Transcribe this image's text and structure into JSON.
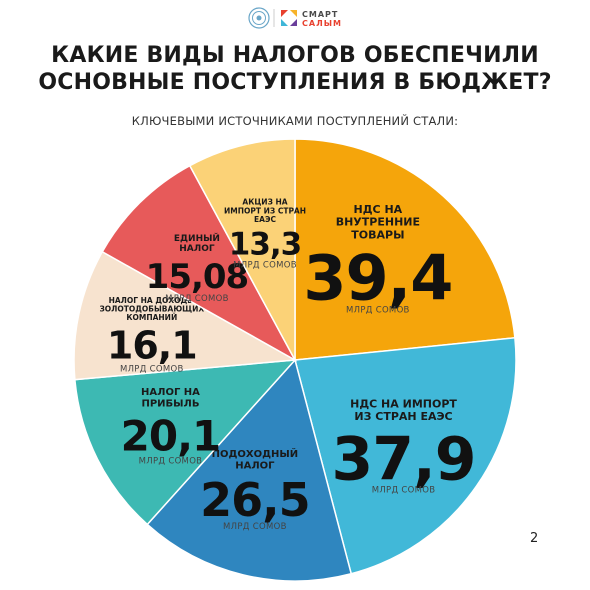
{
  "header": {
    "brand_line1": "СМАРТ",
    "brand_line2": "САЛЫМ",
    "brand_colors": [
      "#e8412f",
      "#f7b32a",
      "#3fb6d8",
      "#6a3f9b"
    ]
  },
  "title_lines": [
    "КАКИЕ ВИДЫ НАЛОГОВ ОБЕСПЕЧИЛИ",
    "ОСНОВНЫЕ ПОСТУПЛЕНИЯ В БЮДЖЕТ?"
  ],
  "subtitle": "КЛЮЧЕВЫМИ ИСТОЧНИКАМИ ПОСТУПЛЕНИЙ СТАЛИ:",
  "page_number": "2",
  "chart_data": {
    "type": "pie",
    "unit": "МЛРД СОМОВ",
    "slices": [
      {
        "label": [
          "НДС НА",
          "ВНУТРЕННИЕ",
          "ТОВАРЫ"
        ],
        "value": 39.4,
        "value_text": "39,4",
        "color": "#f5a50b"
      },
      {
        "label": [
          "НДС НА ИМПОРТ",
          "ИЗ СТРАН ЕАЭС"
        ],
        "value": 37.9,
        "value_text": "37,9",
        "color": "#41b8d8"
      },
      {
        "label": [
          "ПОДОХОДНЫЙ",
          "НАЛОГ"
        ],
        "value": 26.5,
        "value_text": "26,5",
        "color": "#2f86bf"
      },
      {
        "label": [
          "НАЛОГ НА",
          "ПРИБЫЛЬ"
        ],
        "value": 20.1,
        "value_text": "20,1",
        "color": "#3db9b3"
      },
      {
        "label": [
          "НАЛОГ НА ДОХОДЫ",
          "ЗОЛОТОДОБЫВАЮЩИХ",
          "КОМПАНИЙ"
        ],
        "value": 16.1,
        "value_text": "16,1",
        "color": "#f7e3cf"
      },
      {
        "label": [
          "ЕДИНЫЙ",
          "НАЛОГ"
        ],
        "value": 15.08,
        "value_text": "15,08",
        "color": "#e75a5a"
      },
      {
        "label": [
          "АКЦИЗ НА",
          "ИМПОРТ ИЗ СТРАН",
          "ЕАЭС"
        ],
        "value": 13.3,
        "value_text": "13,3",
        "color": "#fbd277"
      }
    ]
  }
}
